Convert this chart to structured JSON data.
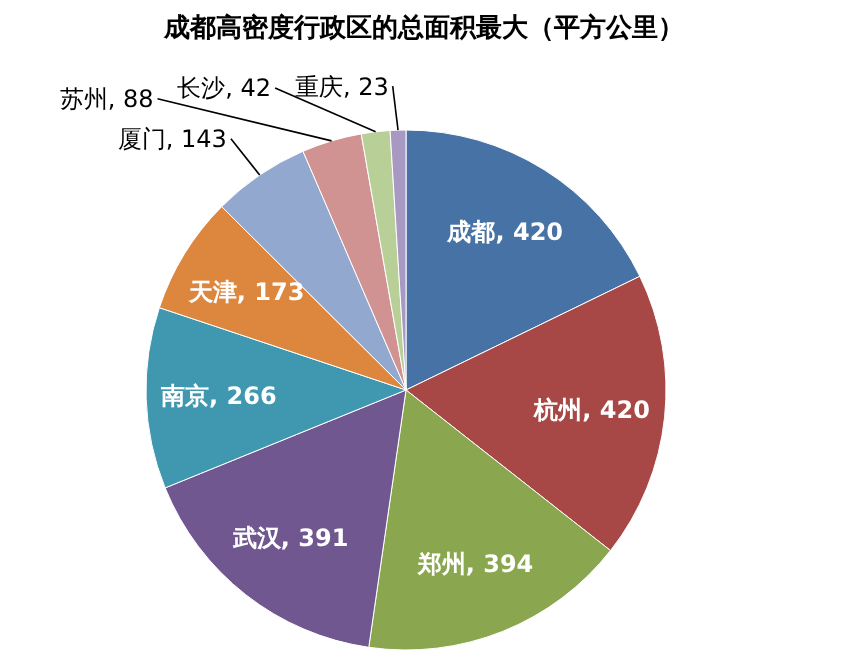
{
  "chart_data": {
    "type": "pie",
    "title": "成都高密度行政区的总面积最大（平方公里）",
    "categories": [
      "成都",
      "杭州",
      "郑州",
      "武汉",
      "南京",
      "天津",
      "厦门",
      "苏州",
      "长沙",
      "重庆"
    ],
    "values": [
      420,
      420,
      394,
      391,
      266,
      173,
      143,
      88,
      42,
      23
    ],
    "colors": [
      "#4672a6",
      "#a84846",
      "#8aa64e",
      "#70578f",
      "#3f97b0",
      "#dc863e",
      "#93a8cf",
      "#d19392",
      "#b9cf98",
      "#a799c2"
    ],
    "value_labels": [
      ", 420",
      ", 420",
      ", 394",
      ", 391",
      ", 266",
      ", 173",
      ", 143",
      ", 88",
      ", 42",
      ", 23"
    ]
  }
}
